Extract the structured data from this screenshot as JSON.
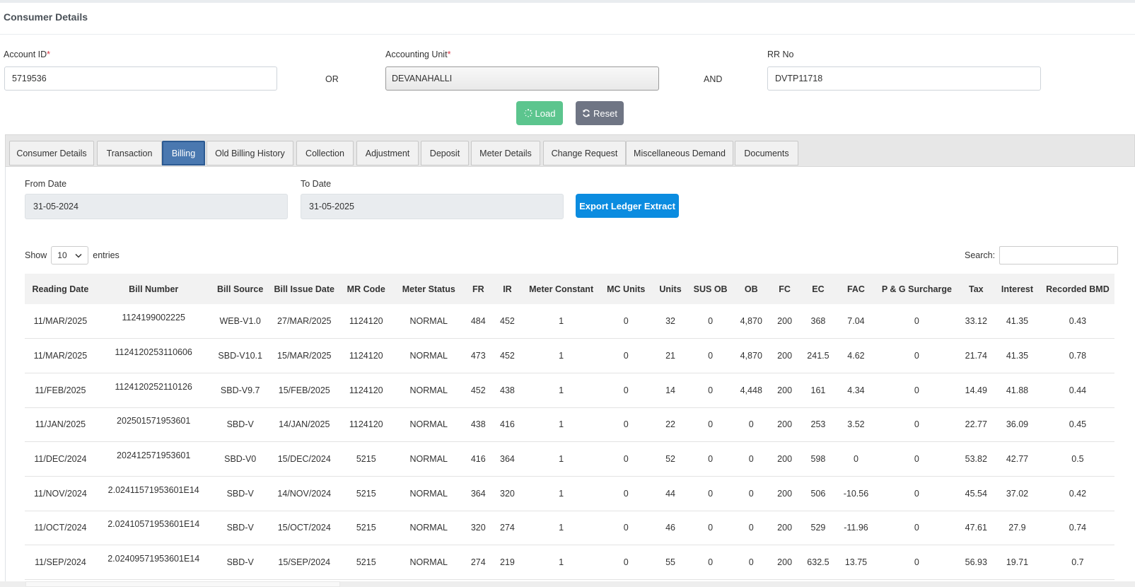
{
  "page_title": "Consumer Details",
  "form": {
    "account_id": {
      "label": "Account ID",
      "required": "*",
      "value": "5719536"
    },
    "or_text": "OR",
    "accounting_unit": {
      "label": "Accounting Unit",
      "required": "*",
      "value": "DEVANAHALLI"
    },
    "and_text": "AND",
    "rr_no": {
      "label": "RR No",
      "value": "DVTP11718"
    },
    "load_label": "Load",
    "reset_label": "Reset"
  },
  "tabs": [
    {
      "label": "Consumer Details",
      "active": false
    },
    {
      "label": "Transaction",
      "active": false
    },
    {
      "label": "Billing",
      "active": true
    },
    {
      "label": "Old Billing History",
      "active": false
    },
    {
      "label": "Collection",
      "active": false
    },
    {
      "label": "Adjustment",
      "active": false
    },
    {
      "label": "Deposit",
      "active": false
    },
    {
      "label": "Meter Details",
      "active": false
    },
    {
      "label": "Change Request",
      "active": false
    },
    {
      "label": "Miscellaneous Demand",
      "active": false
    },
    {
      "label": "Documents",
      "active": false
    }
  ],
  "billing": {
    "from_date_label": "From Date",
    "from_date": "31-05-2024",
    "to_date_label": "To Date",
    "to_date": "31-05-2025",
    "export_label": "Export Ledger Extract",
    "show_label": "Show",
    "entries_value": "10",
    "entries_label": "entries",
    "search_label": "Search:",
    "search_value": ""
  },
  "table": {
    "columns": [
      "Reading Date",
      "Bill Number",
      "Bill Source",
      "Bill Issue Date",
      "MR Code",
      "Meter Status",
      "FR",
      "IR",
      "Meter Constant",
      "MC Units",
      "Units",
      "SUS OB",
      "OB",
      "FC",
      "EC",
      "FAC",
      "P & G Surcharge",
      "Tax",
      "Interest",
      "Recorded BMD"
    ],
    "rows": [
      [
        "11/MAR/2025",
        "1124199002225",
        "WEB-V1.0",
        "27/MAR/2025",
        "1124120",
        "NORMAL",
        "484",
        "452",
        "1",
        "0",
        "32",
        "0",
        "4,870",
        "200",
        "368",
        "7.04",
        "0",
        "33.12",
        "41.35",
        "0.43"
      ],
      [
        "11/MAR/2025",
        "1124120253110606",
        "SBD-V10.1",
        "15/MAR/2025",
        "1124120",
        "NORMAL",
        "473",
        "452",
        "1",
        "0",
        "21",
        "0",
        "4,870",
        "200",
        "241.5",
        "4.62",
        "0",
        "21.74",
        "41.35",
        "0.78"
      ],
      [
        "11/FEB/2025",
        "1124120252110126",
        "SBD-V9.7",
        "15/FEB/2025",
        "1124120",
        "NORMAL",
        "452",
        "438",
        "1",
        "0",
        "14",
        "0",
        "4,448",
        "200",
        "161",
        "4.34",
        "0",
        "14.49",
        "41.88",
        "0.44"
      ],
      [
        "11/JAN/2025",
        "202501571953601",
        "SBD-V",
        "14/JAN/2025",
        "1124120",
        "NORMAL",
        "438",
        "416",
        "1",
        "0",
        "22",
        "0",
        "0",
        "200",
        "253",
        "3.52",
        "0",
        "22.77",
        "36.09",
        "0.45"
      ],
      [
        "11/DEC/2024",
        "202412571953601",
        "SBD-V0",
        "15/DEC/2024",
        "5215",
        "NORMAL",
        "416",
        "364",
        "1",
        "0",
        "52",
        "0",
        "0",
        "200",
        "598",
        "0",
        "0",
        "53.82",
        "42.77",
        "0.5"
      ],
      [
        "11/NOV/2024",
        "2.02411571953601E14",
        "SBD-V",
        "14/NOV/2024",
        "5215",
        "NORMAL",
        "364",
        "320",
        "1",
        "0",
        "44",
        "0",
        "0",
        "200",
        "506",
        "-10.56",
        "0",
        "45.54",
        "37.02",
        "0.42"
      ],
      [
        "11/OCT/2024",
        "2.02410571953601E14",
        "SBD-V",
        "15/OCT/2024",
        "5215",
        "NORMAL",
        "320",
        "274",
        "1",
        "0",
        "46",
        "0",
        "0",
        "200",
        "529",
        "-11.96",
        "0",
        "47.61",
        "27.9",
        "0.74"
      ],
      [
        "11/SEP/2024",
        "2.02409571953601E14",
        "SBD-V",
        "15/SEP/2024",
        "5215",
        "NORMAL",
        "274",
        "219",
        "1",
        "0",
        "55",
        "0",
        "0",
        "200",
        "632.5",
        "13.75",
        "0",
        "56.93",
        "19.71",
        "0.7"
      ]
    ]
  }
}
